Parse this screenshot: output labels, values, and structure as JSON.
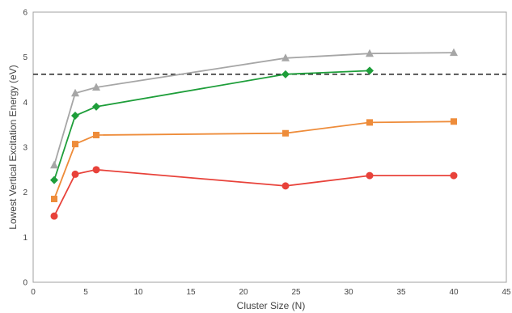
{
  "chart_data": {
    "type": "line",
    "title": "",
    "xlabel": "Cluster Size (N)",
    "ylabel": "Lowest Vertical Excitation Energy (eV)",
    "xlim": [
      0,
      45
    ],
    "ylim": [
      0,
      6
    ],
    "x_ticks": [
      "0",
      "5",
      "10",
      "15",
      "20",
      "25",
      "30",
      "35",
      "40",
      "45"
    ],
    "y_ticks": [
      "0",
      "1",
      "2",
      "3",
      "4",
      "5",
      "6"
    ],
    "grid": false,
    "reference_line": {
      "y": 4.62,
      "style": "dashed",
      "color": "#333333"
    },
    "series": [
      {
        "marker": "triangle",
        "color": "#a6a6a6",
        "x": [
          2,
          4,
          6,
          24,
          32,
          40
        ],
        "y": [
          2.6,
          4.2,
          4.33,
          4.98,
          5.08,
          5.1
        ]
      },
      {
        "marker": "diamond",
        "color": "#1e9e3a",
        "x": [
          2,
          4,
          6,
          24,
          32
        ],
        "y": [
          2.27,
          3.7,
          3.9,
          4.62,
          4.7
        ]
      },
      {
        "marker": "square",
        "color": "#ee8c3a",
        "x": [
          2,
          4,
          6,
          24,
          32,
          40
        ],
        "y": [
          1.85,
          3.07,
          3.27,
          3.31,
          3.55,
          3.57
        ]
      },
      {
        "marker": "circle",
        "color": "#e8423a",
        "x": [
          2,
          4,
          6,
          24,
          32,
          40
        ],
        "y": [
          1.47,
          2.4,
          2.5,
          2.14,
          2.37,
          2.37
        ]
      }
    ]
  }
}
